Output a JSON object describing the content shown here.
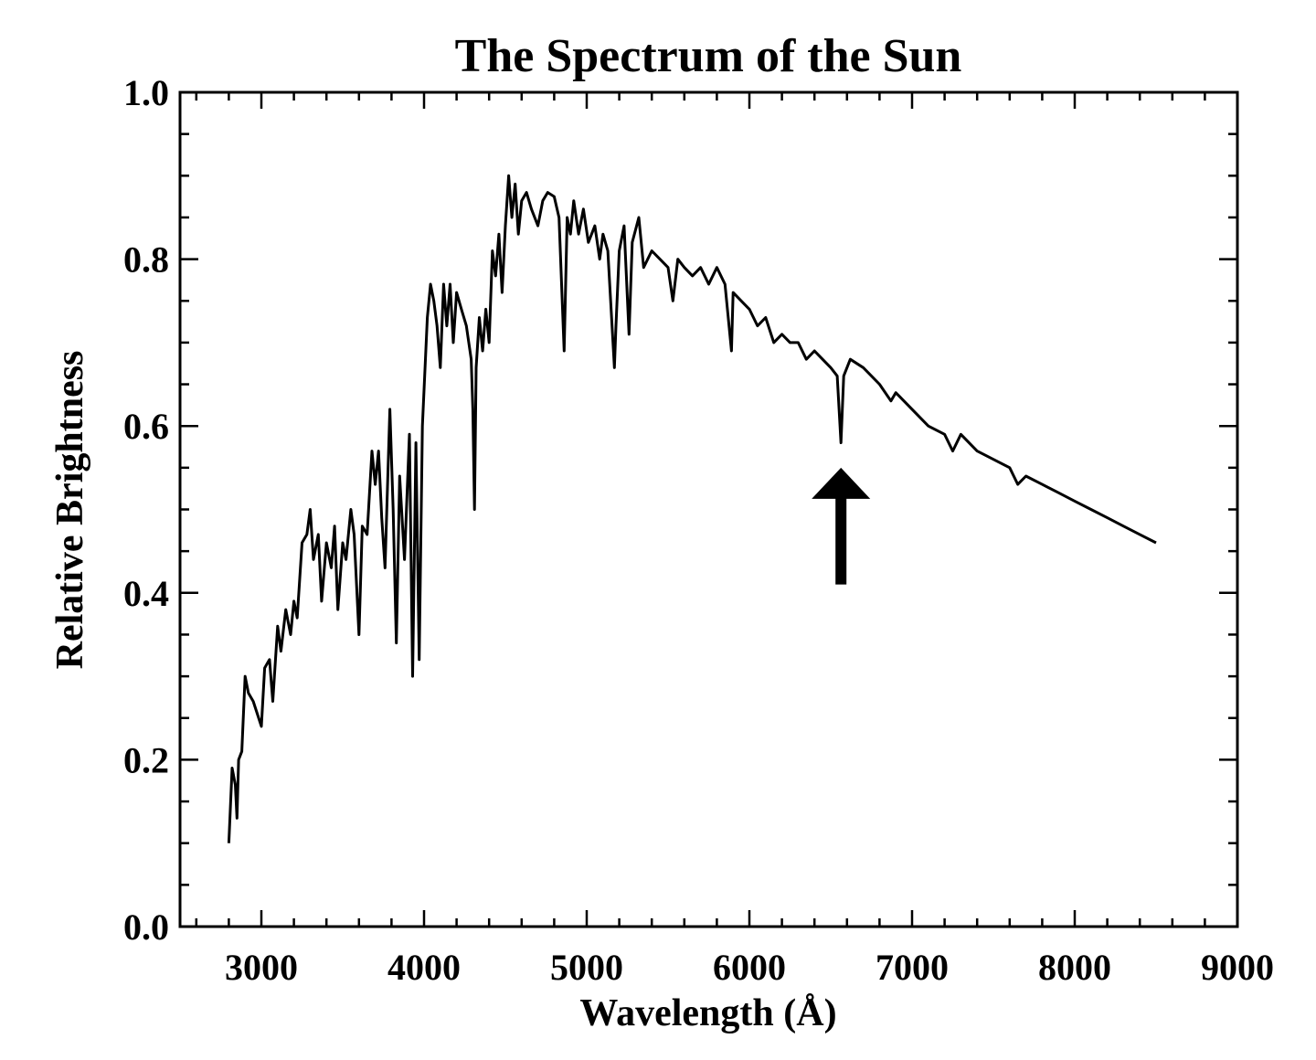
{
  "chart_data": {
    "type": "line",
    "title": "The Spectrum of the Sun",
    "xlabel": "Wavelength (Å)",
    "ylabel": "Relative Brightness",
    "xlim": [
      2500,
      9000
    ],
    "ylim": [
      0.0,
      1.0
    ],
    "xticks": [
      "3000",
      "4000",
      "5000",
      "6000",
      "7000",
      "8000",
      "9000"
    ],
    "yticks": [
      "0.0",
      "0.2",
      "0.4",
      "0.6",
      "0.8",
      "1.0"
    ],
    "grid": false,
    "line_color": "#000000",
    "series": [
      {
        "x": [
          2800,
          2820,
          2840,
          2850,
          2860,
          2880,
          2900,
          2920,
          2950,
          3000,
          3020,
          3050,
          3070,
          3100,
          3120,
          3150,
          3180,
          3200,
          3220,
          3250,
          3280,
          3300,
          3320,
          3350,
          3370,
          3400,
          3430,
          3450,
          3470,
          3500,
          3520,
          3550,
          3570,
          3600,
          3620,
          3650,
          3680,
          3700,
          3720,
          3740,
          3760,
          3790,
          3810,
          3830,
          3850,
          3880,
          3910,
          3930,
          3950,
          3970,
          3990,
          4020,
          4040,
          4060,
          4080,
          4100,
          4120,
          4140,
          4160,
          4180,
          4200,
          4230,
          4260,
          4290,
          4300,
          4310,
          4320,
          4340,
          4360,
          4380,
          4400,
          4420,
          4440,
          4460,
          4480,
          4500,
          4520,
          4540,
          4560,
          4580,
          4600,
          4630,
          4660,
          4700,
          4730,
          4760,
          4800,
          4830,
          4861,
          4880,
          4900,
          4920,
          4950,
          4980,
          5010,
          5050,
          5080,
          5100,
          5130,
          5170,
          5180,
          5200,
          5230,
          5260,
          5280,
          5320,
          5350,
          5400,
          5450,
          5500,
          5530,
          5560,
          5600,
          5650,
          5700,
          5750,
          5800,
          5850,
          5890,
          5900,
          5950,
          6000,
          6050,
          6100,
          6150,
          6200,
          6250,
          6300,
          6350,
          6400,
          6450,
          6500,
          6540,
          6563,
          6580,
          6620,
          6700,
          6800,
          6870,
          6900,
          7000,
          7100,
          7200,
          7250,
          7300,
          7400,
          7500,
          7600,
          7650,
          7700,
          7800,
          7900,
          8000,
          8100,
          8200,
          8300,
          8400,
          8500
        ],
        "y": [
          0.1,
          0.19,
          0.17,
          0.13,
          0.2,
          0.21,
          0.3,
          0.28,
          0.27,
          0.24,
          0.31,
          0.32,
          0.27,
          0.36,
          0.33,
          0.38,
          0.35,
          0.39,
          0.37,
          0.46,
          0.47,
          0.5,
          0.44,
          0.47,
          0.39,
          0.46,
          0.43,
          0.48,
          0.38,
          0.46,
          0.44,
          0.5,
          0.47,
          0.35,
          0.48,
          0.47,
          0.57,
          0.53,
          0.57,
          0.49,
          0.43,
          0.62,
          0.5,
          0.34,
          0.54,
          0.44,
          0.59,
          0.3,
          0.58,
          0.32,
          0.6,
          0.73,
          0.77,
          0.75,
          0.72,
          0.67,
          0.77,
          0.72,
          0.77,
          0.7,
          0.76,
          0.74,
          0.72,
          0.68,
          0.62,
          0.5,
          0.67,
          0.73,
          0.69,
          0.74,
          0.7,
          0.81,
          0.78,
          0.83,
          0.76,
          0.84,
          0.9,
          0.85,
          0.89,
          0.83,
          0.87,
          0.88,
          0.86,
          0.84,
          0.87,
          0.88,
          0.875,
          0.85,
          0.69,
          0.85,
          0.83,
          0.87,
          0.83,
          0.86,
          0.82,
          0.84,
          0.8,
          0.83,
          0.81,
          0.67,
          0.72,
          0.81,
          0.84,
          0.71,
          0.82,
          0.85,
          0.79,
          0.81,
          0.8,
          0.79,
          0.75,
          0.8,
          0.79,
          0.78,
          0.79,
          0.77,
          0.79,
          0.77,
          0.69,
          0.76,
          0.75,
          0.74,
          0.72,
          0.73,
          0.7,
          0.71,
          0.7,
          0.7,
          0.68,
          0.69,
          0.68,
          0.67,
          0.66,
          0.58,
          0.66,
          0.68,
          0.67,
          0.65,
          0.63,
          0.64,
          0.62,
          0.6,
          0.59,
          0.57,
          0.59,
          0.57,
          0.56,
          0.55,
          0.53,
          0.54,
          0.53,
          0.52,
          0.51,
          0.5,
          0.49,
          0.48,
          0.47,
          0.46
        ]
      }
    ],
    "annotations": [
      {
        "type": "arrow",
        "x": 6563,
        "y_tail": 0.41,
        "y_head": 0.55
      }
    ]
  }
}
